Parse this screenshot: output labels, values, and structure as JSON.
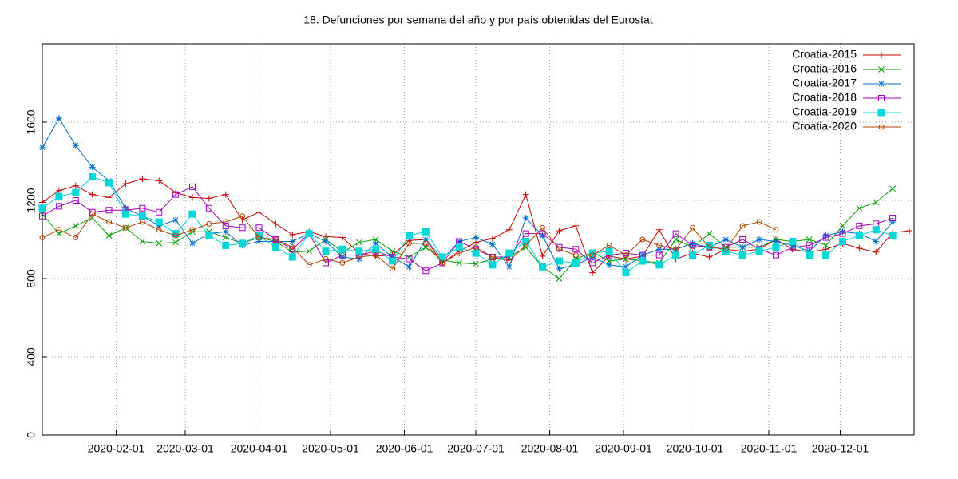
{
  "chart_data": {
    "type": "line",
    "title": "18. Defunciones por semana del año y por país obtenidas del Eurostat",
    "x": [
      "2020-01-01",
      "2020-01-08",
      "2020-01-15",
      "2020-01-22",
      "2020-01-29",
      "2020-02-05",
      "2020-02-12",
      "2020-02-19",
      "2020-02-26",
      "2020-03-04",
      "2020-03-11",
      "2020-03-18",
      "2020-03-25",
      "2020-04-01",
      "2020-04-08",
      "2020-04-15",
      "2020-04-22",
      "2020-04-29",
      "2020-05-06",
      "2020-05-13",
      "2020-05-20",
      "2020-05-27",
      "2020-06-03",
      "2020-06-10",
      "2020-06-17",
      "2020-06-24",
      "2020-07-01",
      "2020-07-08",
      "2020-07-15",
      "2020-07-22",
      "2020-07-29",
      "2020-08-05",
      "2020-08-12",
      "2020-08-19",
      "2020-08-26",
      "2020-09-02",
      "2020-09-09",
      "2020-09-16",
      "2020-09-23",
      "2020-09-30",
      "2020-10-07",
      "2020-10-14",
      "2020-10-21",
      "2020-10-28",
      "2020-11-04",
      "2020-11-11",
      "2020-11-18",
      "2020-11-25",
      "2020-12-02",
      "2020-12-09",
      "2020-12-16",
      "2020-12-23",
      "2020-12-30"
    ],
    "xlim": [
      "2020-01-01",
      "2021-01-01"
    ],
    "xticks": [
      "2020-02-01",
      "2020-03-01",
      "2020-04-01",
      "2020-05-01",
      "2020-06-01",
      "2020-07-01",
      "2020-08-01",
      "2020-09-01",
      "2020-10-01",
      "2020-11-01",
      "2020-12-01"
    ],
    "ylim": [
      0,
      2000
    ],
    "yticks": [
      0,
      400,
      800,
      1200,
      1600
    ],
    "grid": true,
    "legend": "top-right",
    "series": [
      {
        "name": "Croatia-2015",
        "color": "#c80000",
        "marker": "plus",
        "values": [
          1190,
          1250,
          1275,
          1230,
          1215,
          1285,
          1310,
          1300,
          1240,
          1215,
          1210,
          1230,
          1100,
          1140,
          1080,
          1025,
          1040,
          1015,
          1010,
          930,
          915,
          920,
          995,
          1000,
          880,
          940,
          985,
          1005,
          1050,
          1230,
          915,
          1045,
          1070,
          830,
          915,
          900,
          915,
          1050,
          900,
          930,
          910,
          950,
          940,
          950,
          1000,
          950,
          935,
          950,
          980,
          955,
          935,
          1035,
          1045
        ]
      },
      {
        "name": "Croatia-2016",
        "color": "#00a000",
        "marker": "cross",
        "values": [
          1130,
          1030,
          1070,
          1110,
          1020,
          1060,
          990,
          980,
          985,
          1040,
          1040,
          1010,
          980,
          1010,
          990,
          935,
          940,
          1000,
          935,
          985,
          1000,
          940,
          910,
          960,
          895,
          880,
          875,
          900,
          910,
          960,
          860,
          800,
          900,
          935,
          890,
          900,
          890,
          880,
          1000,
          960,
          1030,
          960,
          960,
          960,
          1000,
          990,
          1000,
          970,
          1070,
          1160,
          1190,
          1260,
          null
        ]
      },
      {
        "name": "Croatia-2017",
        "color": "#0070d0",
        "marker": "star",
        "values": [
          1470,
          1620,
          1480,
          1370,
          1300,
          1160,
          1120,
          1070,
          1100,
          980,
          1030,
          1040,
          970,
          990,
          990,
          990,
          1030,
          990,
          910,
          900,
          980,
          910,
          860,
          1000,
          900,
          990,
          1010,
          975,
          860,
          1110,
          1020,
          850,
          870,
          910,
          870,
          860,
          920,
          950,
          950,
          980,
          960,
          1000,
          960,
          1000,
          990,
          970,
          940,
          1020,
          1040,
          1030,
          990,
          1090,
          null
        ]
      },
      {
        "name": "Croatia-2018",
        "color": "#a000c0",
        "marker": "square",
        "values": [
          1120,
          1170,
          1200,
          1140,
          1150,
          1150,
          1160,
          1140,
          1230,
          1270,
          1160,
          1070,
          1060,
          1060,
          1000,
          950,
          1030,
          880,
          920,
          920,
          940,
          910,
          900,
          840,
          880,
          990,
          950,
          910,
          910,
          1030,
          1030,
          960,
          950,
          880,
          920,
          930,
          920,
          920,
          1030,
          970,
          960,
          960,
          1000,
          950,
          920,
          960,
          970,
          1010,
          1030,
          1070,
          1080,
          1110,
          null
        ]
      },
      {
        "name": "Croatia-2019",
        "color": "#00d8d8",
        "marker": "filled-square",
        "values": [
          1160,
          1220,
          1240,
          1320,
          1290,
          1130,
          1120,
          1090,
          1030,
          1130,
          1020,
          970,
          980,
          1020,
          960,
          910,
          1030,
          940,
          950,
          940,
          950,
          890,
          1020,
          1040,
          910,
          960,
          930,
          870,
          930,
          990,
          860,
          890,
          880,
          930,
          940,
          830,
          890,
          870,
          920,
          920,
          970,
          940,
          920,
          940,
          960,
          990,
          920,
          920,
          990,
          1020,
          1050,
          1020,
          null
        ]
      },
      {
        "name": "Croatia-2020",
        "color": "#b04000",
        "marker": "circle",
        "values": [
          1010,
          1050,
          1010,
          1130,
          1090,
          1060,
          1090,
          1050,
          1020,
          1050,
          1080,
          1090,
          1120,
          1010,
          1000,
          960,
          870,
          900,
          880,
          910,
          920,
          850,
          980,
          980,
          880,
          930,
          960,
          910,
          890,
          970,
          1060,
          950,
          920,
          920,
          970,
          920,
          1000,
          970,
          950,
          1060,
          960,
          950,
          1070,
          1090,
          1050,
          null,
          null,
          null,
          null,
          null,
          null,
          null,
          null
        ]
      }
    ]
  }
}
